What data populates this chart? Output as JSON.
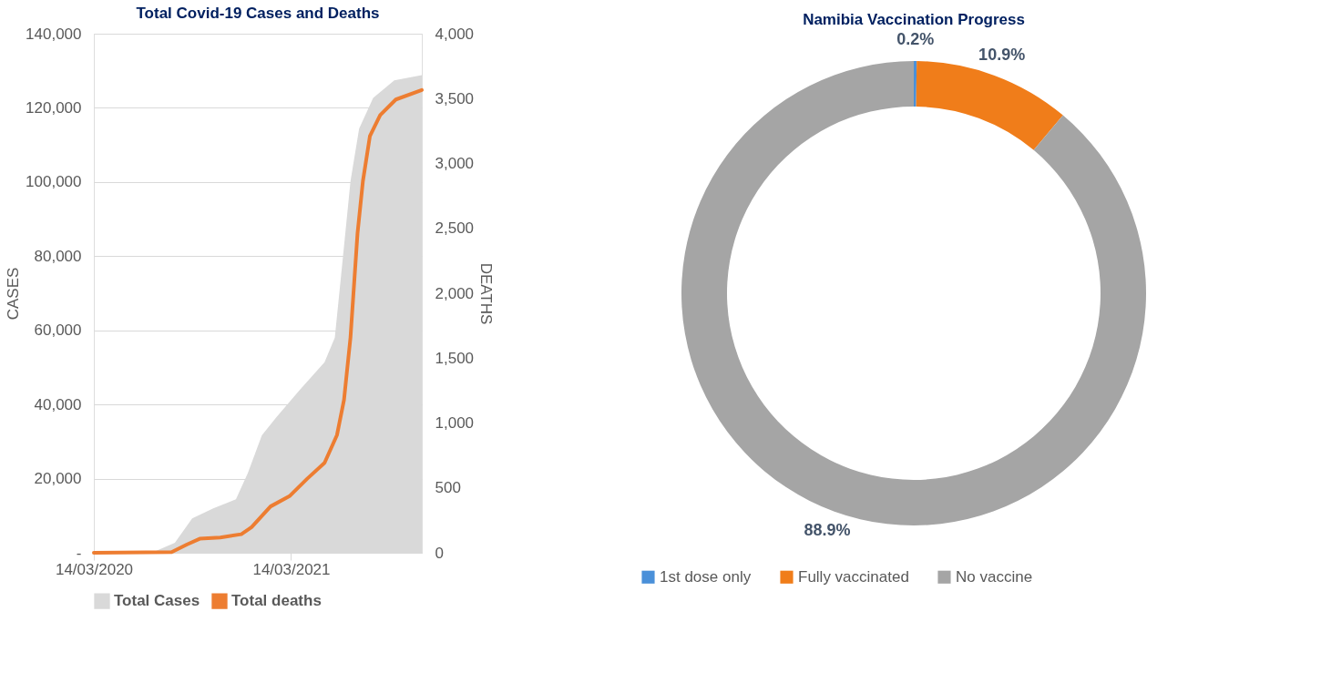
{
  "chart_data": [
    {
      "type": "line",
      "title": "Total Covid-19 Cases and Deaths",
      "ylabel": "CASES",
      "y2label": "DEATHS",
      "xlim": [
        "2020-03-14",
        "2021-11-11"
      ],
      "xticks": [
        {
          "value": "2020-03-14",
          "label": "14/03/2020"
        },
        {
          "value": "2021-03-14",
          "label": "14/03/2021"
        }
      ],
      "ylim": [
        0,
        140000
      ],
      "yticks": [
        {
          "value": 0,
          "label": "-"
        },
        {
          "value": 20000,
          "label": "20,000"
        },
        {
          "value": 40000,
          "label": "40,000"
        },
        {
          "value": 60000,
          "label": "60,000"
        },
        {
          "value": 80000,
          "label": "80,000"
        },
        {
          "value": 100000,
          "label": "100,000"
        },
        {
          "value": 120000,
          "label": "120,000"
        },
        {
          "value": 140000,
          "label": "140,000"
        }
      ],
      "y2lim": [
        0,
        4000
      ],
      "y2ticks": [
        0,
        500,
        {
          "value": 1000,
          "label": "1,000"
        },
        {
          "value": 1500,
          "label": "1,500"
        },
        {
          "value": 2000,
          "label": "2,000"
        },
        {
          "value": 2500,
          "label": "2,500"
        },
        {
          "value": 3000,
          "label": "3,000"
        },
        {
          "value": 3500,
          "label": "3,500"
        },
        {
          "value": 4000,
          "label": "4,000"
        }
      ],
      "grid": "y",
      "legend": "bottom",
      "series": [
        {
          "name": "Total Cases",
          "type": "area",
          "color": "#d9d9d9",
          "x": [
            "2020-03-14",
            "2020-07-07",
            "2020-08-11",
            "2020-09-12",
            "2020-10-21",
            "2020-12-02",
            "2020-12-24",
            "2021-01-19",
            "2021-02-14",
            "2021-03-30",
            "2021-05-15",
            "2021-06-03",
            "2021-06-16",
            "2021-07-02",
            "2021-07-18",
            "2021-08-13",
            "2021-09-21",
            "2021-11-11"
          ],
          "values": [
            0,
            500,
            2700,
            9300,
            12000,
            14400,
            21500,
            31700,
            36400,
            43900,
            51400,
            58000,
            76800,
            100200,
            114400,
            122700,
            127400,
            128800
          ]
        },
        {
          "name": "Total deaths",
          "type": "line",
          "axis": "y2",
          "color": "#ed7d31",
          "x": [
            "2020-03-14",
            "2020-08-05",
            "2020-09-02",
            "2020-09-26",
            "2020-11-03",
            "2020-12-12",
            "2020-12-31",
            "2021-02-04",
            "2021-03-12",
            "2021-04-13",
            "2021-05-15",
            "2021-06-07",
            "2021-06-20",
            "2021-07-02",
            "2021-07-15",
            "2021-07-25",
            "2021-08-07",
            "2021-08-26",
            "2021-09-24",
            "2021-11-11"
          ],
          "values": [
            0,
            5,
            63,
            108,
            118,
            143,
            197,
            357,
            439,
            571,
            693,
            907,
            1178,
            1659,
            2461,
            2864,
            3212,
            3373,
            3493,
            3566
          ]
        }
      ]
    },
    {
      "type": "donut",
      "title": "Namibia Vaccination Progress",
      "categories": [
        "1st dose only",
        "Fully vaccinated",
        "No vaccine"
      ],
      "values": [
        0.2,
        10.9,
        88.9
      ],
      "colors": [
        "#4a90d9",
        "#f07d1a",
        "#a5a5a5"
      ],
      "value_labels": [
        "0.2%",
        "10.9%",
        "88.9%"
      ],
      "legend": "bottom"
    }
  ]
}
